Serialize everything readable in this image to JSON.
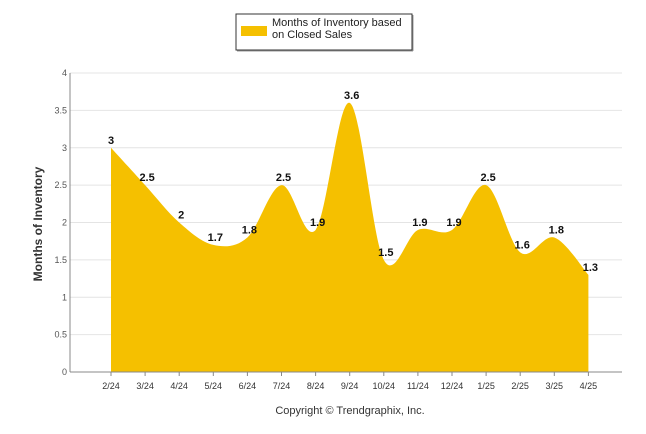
{
  "chart_data": {
    "type": "area",
    "categories": [
      "2/24",
      "3/24",
      "4/24",
      "5/24",
      "6/24",
      "7/24",
      "8/24",
      "9/24",
      "10/24",
      "11/24",
      "12/24",
      "1/25",
      "2/25",
      "3/25",
      "4/25"
    ],
    "series": [
      {
        "name": "Months of Inventory based on Closed Sales",
        "values": [
          3,
          2.5,
          2,
          1.7,
          1.8,
          2.5,
          1.9,
          3.6,
          1.5,
          1.9,
          1.9,
          2.5,
          1.6,
          1.8,
          1.3
        ],
        "labels": [
          "3",
          "2.5",
          "2",
          "1.7",
          "1.8",
          "2.5",
          "1.9",
          "3.6",
          "1.5",
          "1.9",
          "1.9",
          "2.5",
          "1.6",
          "1.8",
          "1.3"
        ],
        "color": "#F5C000"
      }
    ],
    "ylabel": "Months of Inventory",
    "xlabel": "",
    "ylim": [
      0,
      4
    ],
    "yticks": [
      "0",
      "0.5",
      "1",
      "1.5",
      "2",
      "2.5",
      "3",
      "3.5",
      "4"
    ],
    "grid": true,
    "legend_position": "top-center",
    "footer": "Copyright © Trendgraphix, Inc."
  }
}
